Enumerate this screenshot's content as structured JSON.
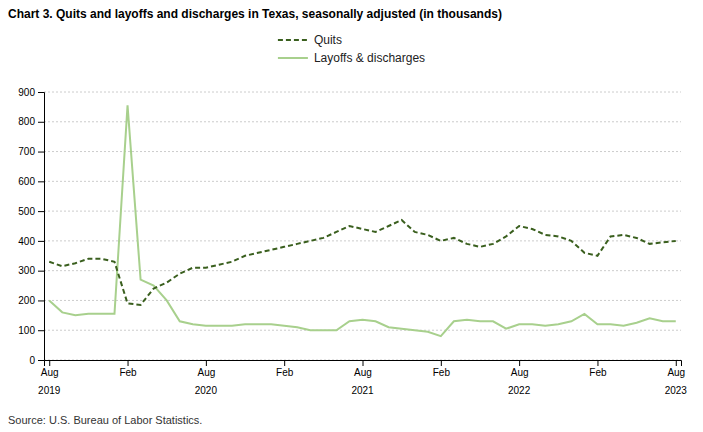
{
  "chart_data": {
    "type": "line",
    "title": "Chart 3. Quits and layoffs and discharges in Texas, seasonally adjusted (in thousands)",
    "annotations": [
      "Source: U.S. Bureau of Labor Statistics."
    ],
    "categories": [
      "Aug",
      null,
      null,
      null,
      null,
      null,
      "Feb",
      null,
      null,
      null,
      null,
      null,
      "Aug",
      null,
      null,
      null,
      null,
      null,
      "Feb",
      null,
      null,
      null,
      null,
      null,
      "Aug",
      null,
      null,
      null,
      null,
      null,
      "Feb",
      null,
      null,
      null,
      null,
      null,
      "Aug",
      null,
      null,
      null,
      null,
      null,
      "Feb",
      null,
      null,
      null,
      null,
      null,
      "Aug"
    ],
    "category_years": [
      "2019",
      null,
      null,
      null,
      null,
      null,
      null,
      null,
      null,
      null,
      null,
      null,
      "2020",
      null,
      null,
      null,
      null,
      null,
      null,
      null,
      null,
      null,
      null,
      null,
      "2021",
      null,
      null,
      null,
      null,
      null,
      null,
      null,
      null,
      null,
      null,
      null,
      "2022",
      null,
      null,
      null,
      null,
      null,
      null,
      null,
      null,
      null,
      null,
      null,
      "2023"
    ],
    "series": [
      {
        "name": "Layoffs & discharges",
        "color": "#a8d08d",
        "line_style": "solid",
        "values": [
          200,
          160,
          150,
          155,
          155,
          155,
          855,
          270,
          250,
          200,
          130,
          120,
          115,
          115,
          115,
          120,
          120,
          120,
          115,
          110,
          100,
          100,
          100,
          130,
          135,
          130,
          110,
          105,
          100,
          95,
          80,
          130,
          135,
          130,
          130,
          105,
          120,
          120,
          115,
          120,
          130,
          155,
          120,
          120,
          115,
          125,
          140,
          130,
          130
        ]
      },
      {
        "name": "Quits",
        "color": "#3a5f1e",
        "line_style": "dashed",
        "values": [
          330,
          315,
          325,
          340,
          340,
          330,
          190,
          185,
          240,
          260,
          290,
          310,
          310,
          320,
          330,
          350,
          360,
          370,
          380,
          390,
          400,
          410,
          430,
          450,
          440,
          430,
          450,
          470,
          430,
          420,
          400,
          410,
          390,
          380,
          390,
          415,
          450,
          440,
          420,
          415,
          400,
          360,
          350,
          415,
          420,
          410,
          390,
          395,
          400
        ]
      }
    ],
    "ylim": [
      0,
      900
    ],
    "yticks": [
      0,
      100,
      200,
      300,
      400,
      500,
      600,
      700,
      800,
      900
    ],
    "grid": true,
    "legend": "top"
  }
}
